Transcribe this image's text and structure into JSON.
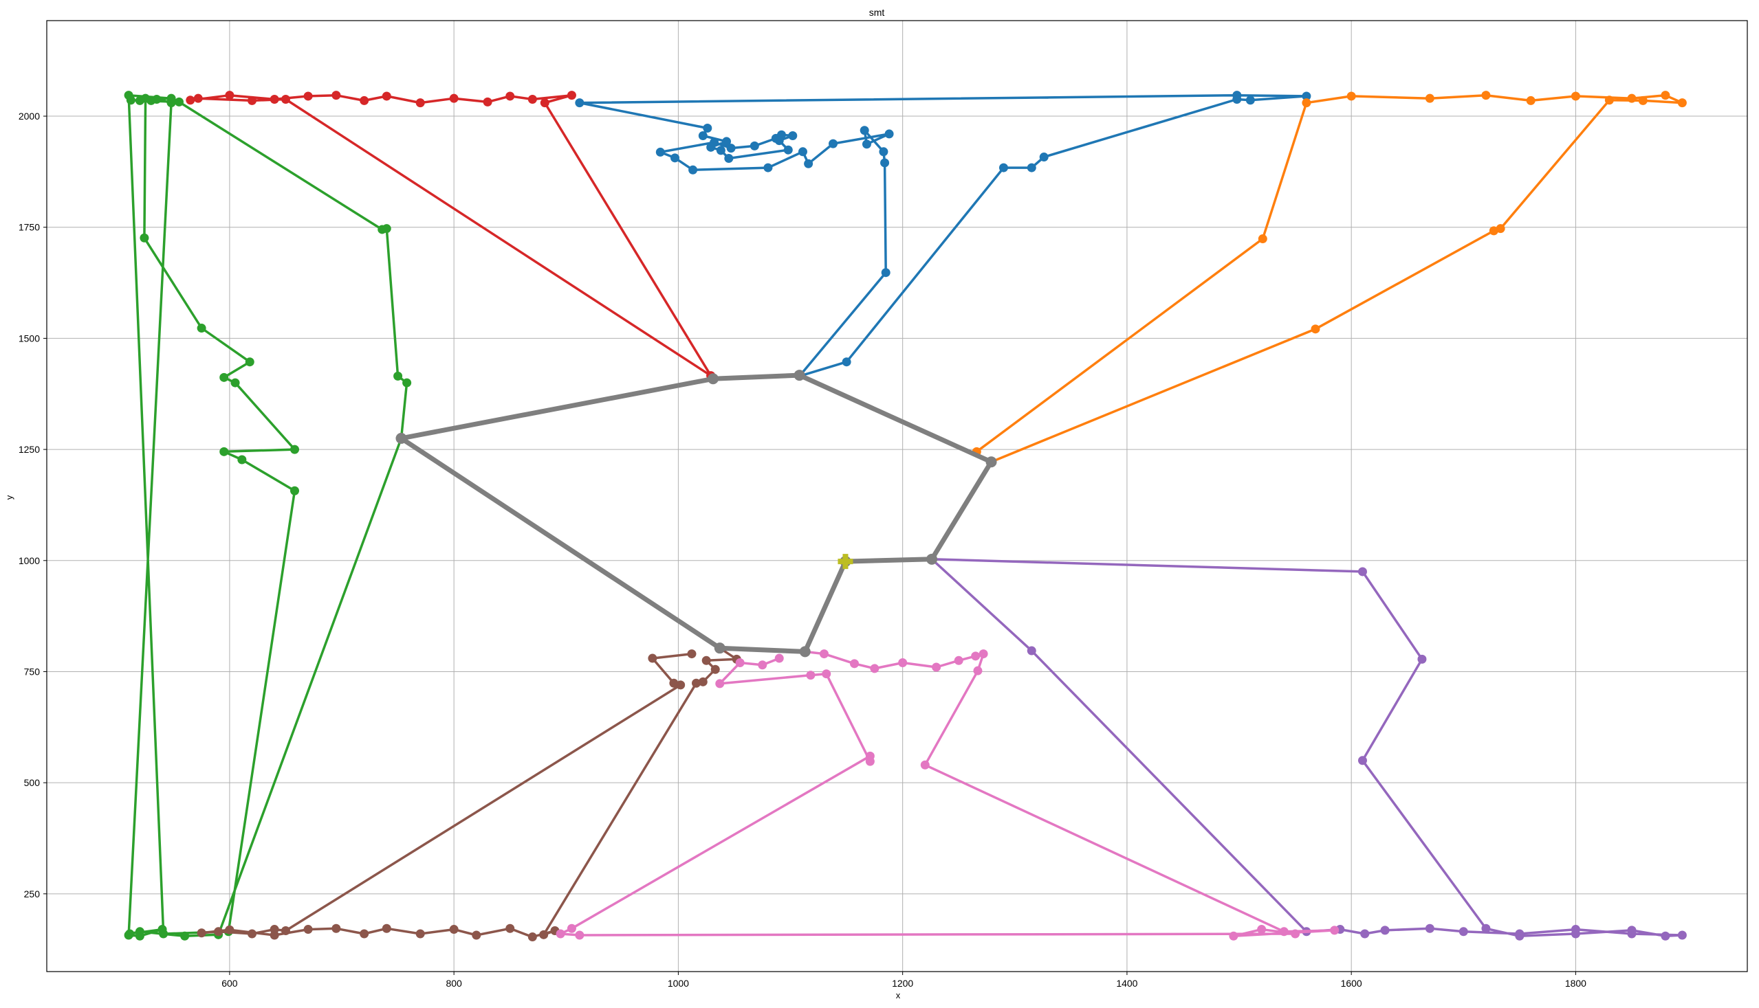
{
  "chart_data": {
    "type": "line",
    "title": "smt",
    "xlabel": "x",
    "ylabel": "y",
    "xlim": [
      437,
      1953
    ],
    "ylim": [
      75,
      2215
    ],
    "x_ticks": [
      600,
      800,
      1000,
      1200,
      1400,
      1600,
      1800
    ],
    "y_ticks": [
      250,
      500,
      750,
      1000,
      1250,
      1500,
      1750,
      2000
    ],
    "grid": true,
    "legend": null,
    "colors": {
      "blue": "#1f77b4",
      "orange": "#ff7f0e",
      "green": "#2ca02c",
      "red": "#d62728",
      "purple": "#9467bd",
      "brown": "#8c564b",
      "pink": "#e377c2",
      "gray": "#7f7f7f",
      "olive": "#bcbd22"
    },
    "trunk": {
      "color": "#7f7f7f",
      "x": [
        1149,
        1226,
        1279,
        1108,
        1031,
        753,
        1037,
        1113,
        1149
      ],
      "y": [
        998,
        1003,
        1222,
        1417,
        1409,
        1275,
        803,
        795,
        998
      ]
    },
    "root": {
      "x": 1149,
      "y": 998,
      "color": "#bcbd22"
    },
    "series": [
      {
        "color": "#1f77b4",
        "x": [
          1108,
          1185,
          1184,
          1183,
          1166,
          1168,
          1188,
          1138,
          1116,
          1111,
          1080,
          1013,
          997,
          984,
          1032,
          1047,
          1068,
          1087,
          1092,
          1102,
          1090,
          1098,
          1045,
          1038,
          1029,
          1043,
          1022,
          1026,
          912,
          1498,
          1560,
          1510,
          1498,
          1326,
          1315,
          1290,
          1150,
          1108
        ],
        "y": [
          1415,
          1648,
          1895,
          1920,
          1968,
          1937,
          1960,
          1938,
          1893,
          1920,
          1884,
          1879,
          1906,
          1919,
          1941,
          1928,
          1933,
          1950,
          1958,
          1956,
          1945,
          1924,
          1905,
          1923,
          1930,
          1943,
          1956,
          1973,
          2030,
          2047,
          2045,
          2036,
          2038,
          1908,
          1884,
          1884,
          1447,
          1415
        ]
      },
      {
        "color": "#ff7f0e",
        "x": [
          1266,
          1521,
          1560,
          1600,
          1670,
          1720,
          1760,
          1800,
          1850,
          1880,
          1895,
          1860,
          1830,
          1733,
          1727,
          1568,
          1279
        ],
        "y": [
          1245,
          1724,
          2030,
          2045,
          2040,
          2047,
          2035,
          2045,
          2040,
          2047,
          2030,
          2035,
          2036,
          1747,
          1742,
          1521,
          1222
        ]
      },
      {
        "color": "#2ca02c",
        "x": [
          753,
          590,
          560,
          520,
          511,
          540,
          520,
          510,
          548,
          535,
          530,
          525,
          524,
          575,
          618,
          595,
          605,
          658,
          595,
          611,
          658,
          599,
          541,
          510,
          548,
          520,
          512,
          555,
          736,
          740,
          750,
          758,
          753
        ],
        "y": [
          1275,
          158,
          155,
          165,
          160,
          170,
          155,
          157,
          2030,
          2038,
          2035,
          2040,
          1726,
          1523,
          1447,
          1412,
          1400,
          1250,
          1245,
          1227,
          1157,
          165,
          160,
          2047,
          2040,
          2035,
          2036,
          2032,
          1745,
          1747,
          1415,
          1400,
          1275
        ]
      },
      {
        "color": "#d62728",
        "x": [
          1029,
          881,
          905,
          870,
          850,
          830,
          800,
          770,
          740,
          720,
          695,
          670,
          640,
          600,
          565,
          572,
          620,
          650,
          1029
        ],
        "y": [
          1416,
          2030,
          2047,
          2038,
          2045,
          2032,
          2040,
          2030,
          2045,
          2035,
          2047,
          2045,
          2038,
          2047,
          2036,
          2040,
          2035,
          2038,
          1416
        ]
      },
      {
        "color": "#9467bd",
        "x": [
          1226,
          1610,
          1663,
          1610,
          1720,
          1750,
          1800,
          1850,
          1880,
          1895,
          1850,
          1800,
          1750,
          1700,
          1670,
          1630,
          1612,
          1590,
          1560,
          1315,
          1226
        ],
        "y": [
          1003,
          975,
          778,
          550,
          172,
          155,
          160,
          168,
          155,
          157,
          160,
          170,
          160,
          165,
          172,
          168,
          160,
          170,
          165,
          797,
          1003
        ]
      },
      {
        "color": "#8c564b",
        "x": [
          1037,
          1052,
          1025,
          1033,
          1022,
          1016,
          880,
          890,
          870,
          850,
          820,
          800,
          770,
          740,
          720,
          695,
          670,
          640,
          600,
          575,
          590,
          620,
          640,
          650,
          1002,
          996,
          977,
          1012
        ],
        "y": [
          803,
          778,
          775,
          755,
          727,
          724,
          158,
          167,
          153,
          172,
          157,
          170,
          160,
          172,
          160,
          172,
          170,
          157,
          169,
          162,
          165,
          160,
          170,
          167,
          720,
          724,
          780,
          790
        ]
      },
      {
        "color": "#e377c2",
        "x": [
          1113,
          1130,
          1157,
          1175,
          1200,
          1230,
          1250,
          1265,
          1272,
          1267,
          1220,
          1540,
          1585,
          1495,
          1520,
          1550,
          912,
          895,
          905,
          1171,
          1171,
          1132,
          1118,
          1037,
          1055,
          1075,
          1090
        ],
        "y": [
          795,
          790,
          768,
          757,
          770,
          760,
          775,
          785,
          790,
          752,
          540,
          165,
          168,
          155,
          170,
          160,
          157,
          160,
          172,
          560,
          548,
          745,
          742,
          723,
          770,
          765,
          780
        ]
      }
    ]
  }
}
